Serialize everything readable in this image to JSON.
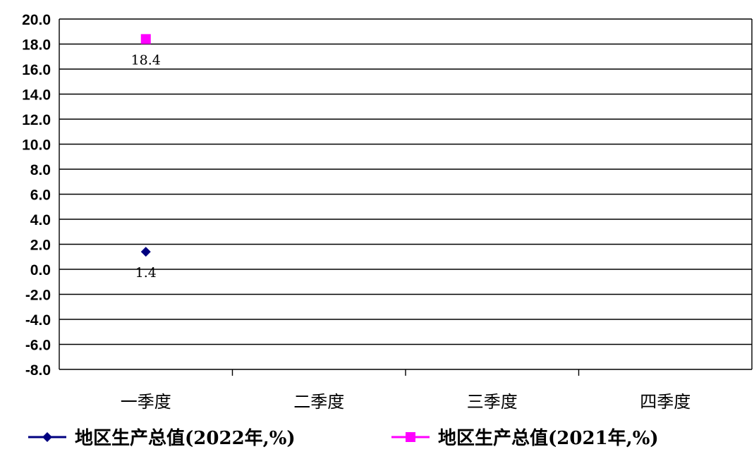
{
  "chart_data": {
    "type": "line",
    "categories": [
      "一季度",
      "二季度",
      "三季度",
      "四季度"
    ],
    "ylim": [
      -8.0,
      20.0
    ],
    "ystep": 2.0,
    "grid": true,
    "legend_position": "bottom",
    "series": [
      {
        "name": "地区生产总值(2022年,%)",
        "values": [
          1.4,
          null,
          null,
          null
        ],
        "labels": [
          "1.4",
          "",
          "",
          ""
        ],
        "color": "#000080",
        "marker": "diamond"
      },
      {
        "name": "地区生产总值(2021年,%)",
        "values": [
          18.4,
          null,
          null,
          null
        ],
        "labels": [
          "18.4",
          "",
          "",
          ""
        ],
        "color": "#ff00ff",
        "marker": "square"
      }
    ]
  }
}
